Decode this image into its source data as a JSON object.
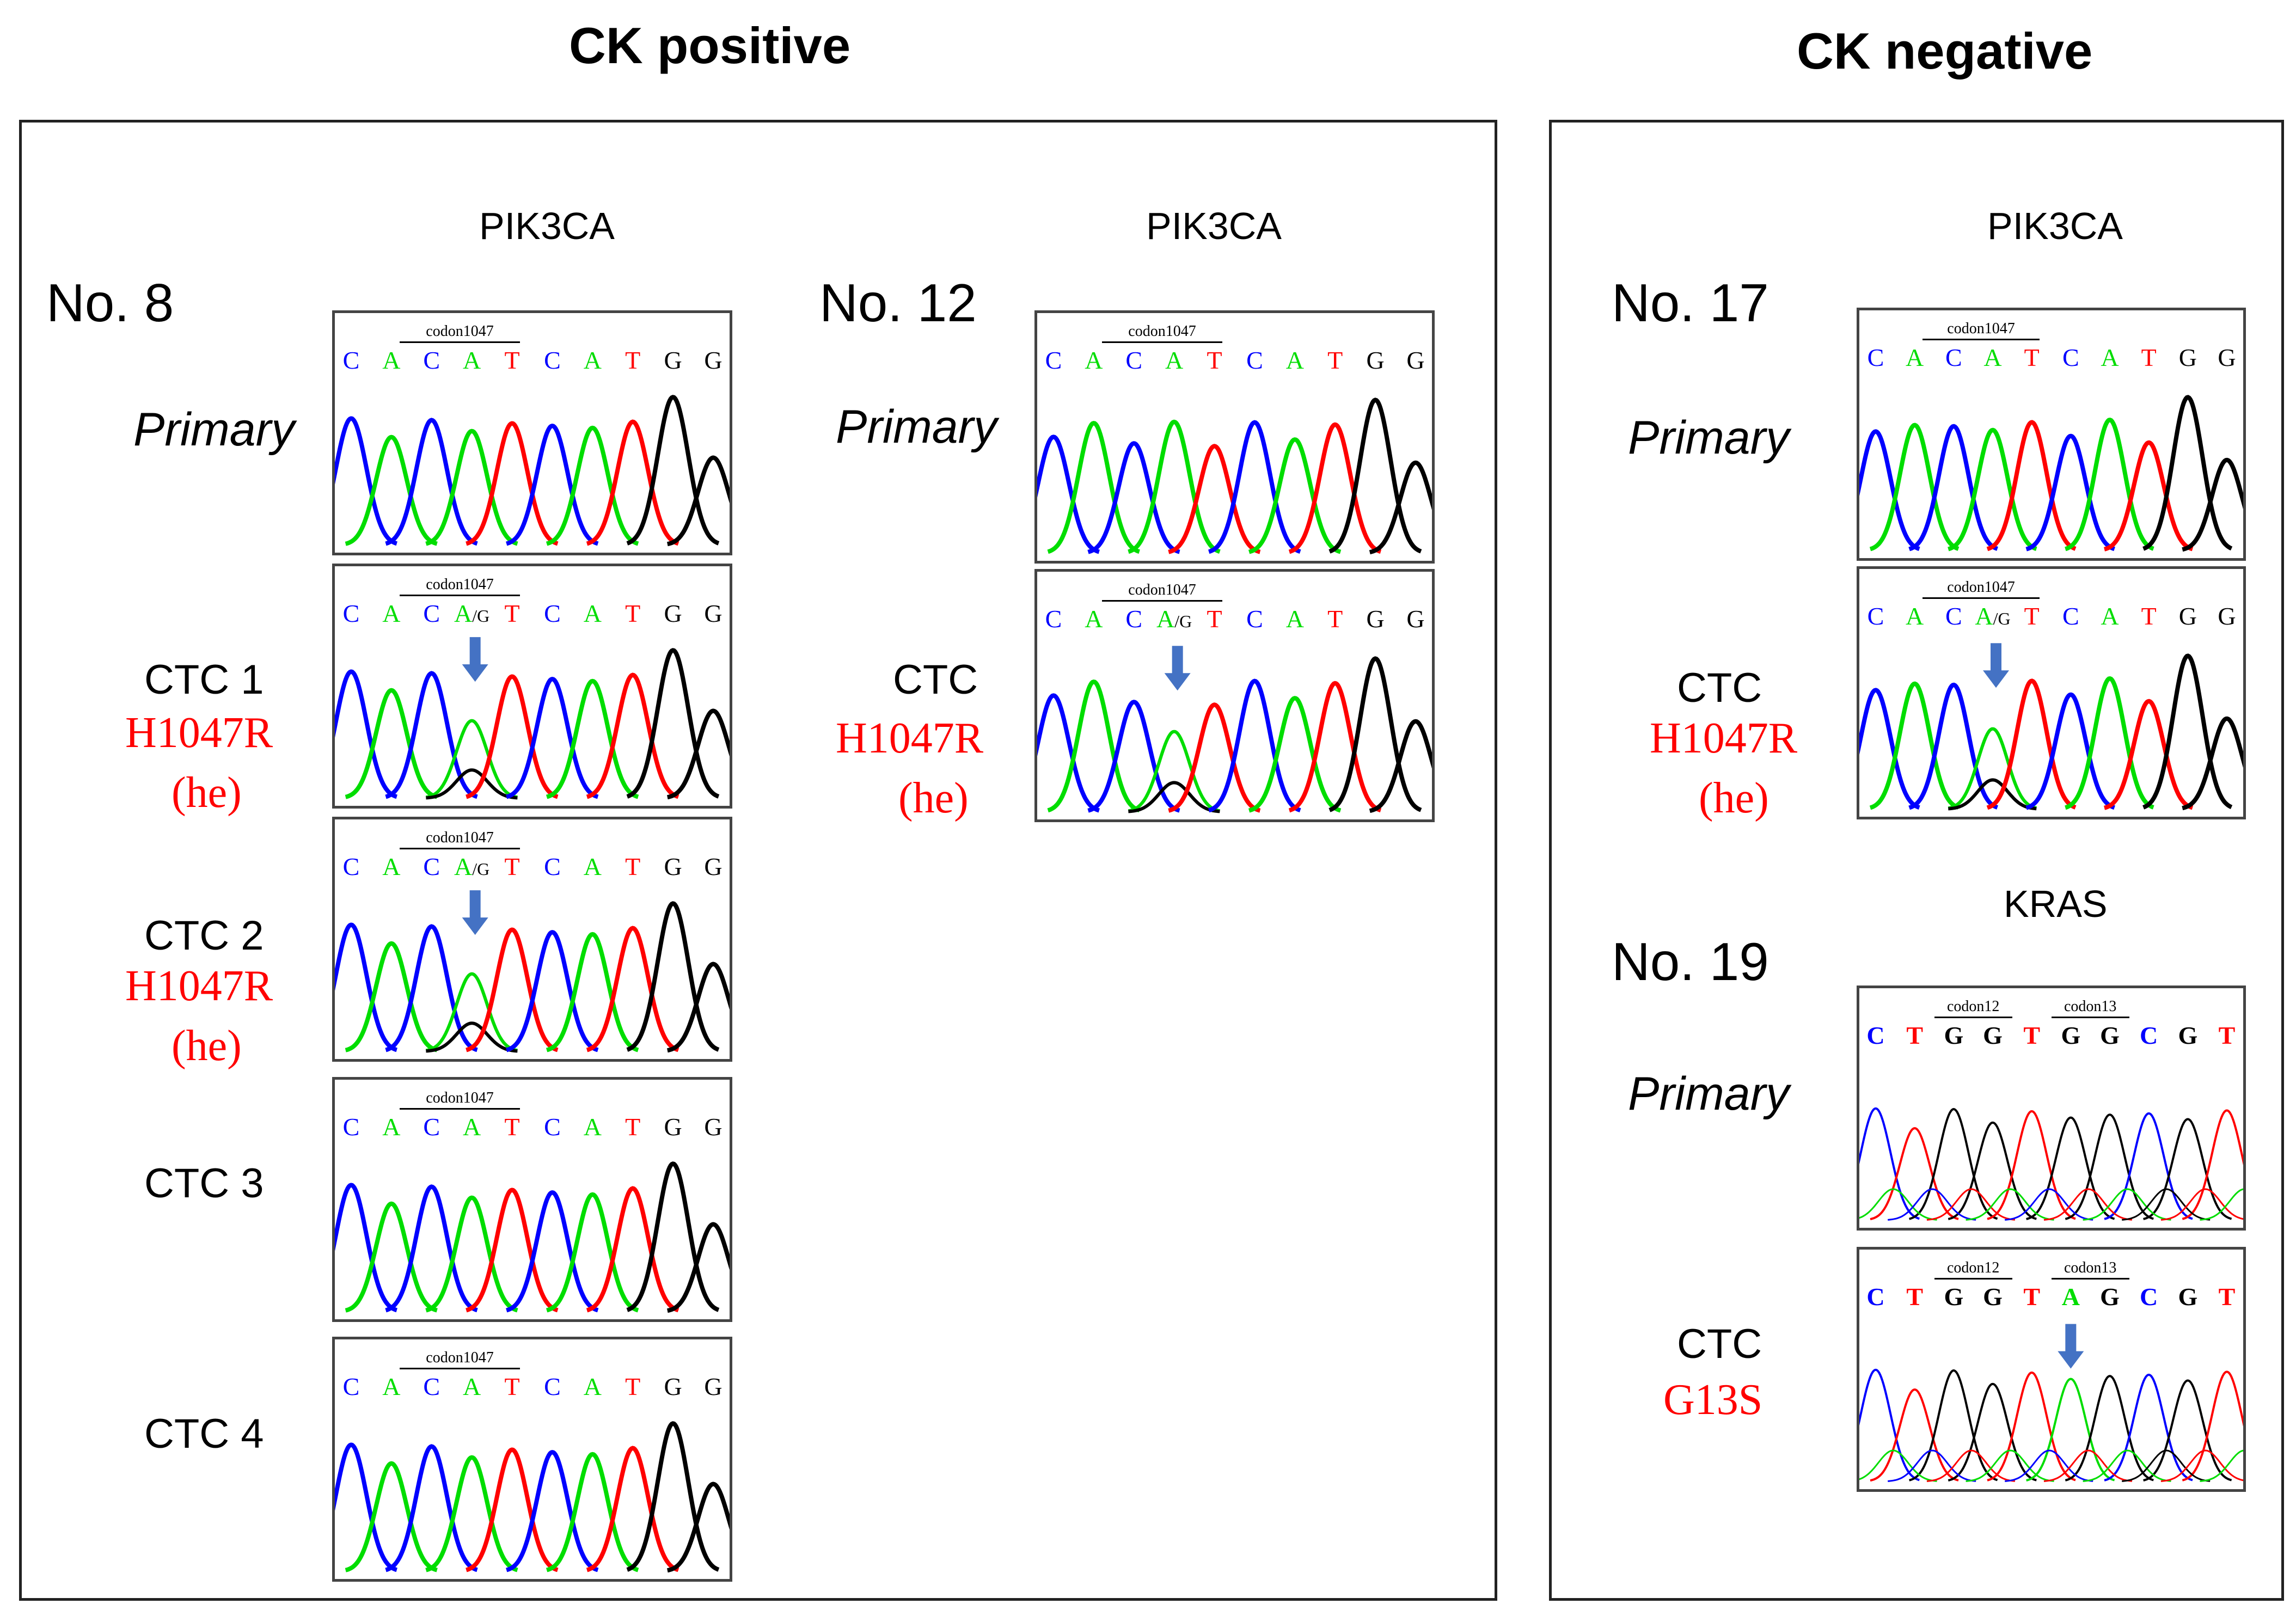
{
  "headers": {
    "ck_positive": "CK positive",
    "ck_negative": "CK negative"
  },
  "colors": {
    "A": "#00dd00",
    "C": "#0000ff",
    "G": "#000000",
    "T": "#ff0000",
    "mutation_text": "#ff0000",
    "arrow": "#4472c4"
  },
  "cases": [
    {
      "id": "no8",
      "label": "No. 8",
      "gene": "PIK3CA",
      "samples": [
        {
          "label": "Primary",
          "mutation": null,
          "zygosity": null,
          "codons": [
            "codon1047"
          ],
          "sequence": [
            "C",
            "A",
            "C",
            "A",
            "T",
            "C",
            "A",
            "T",
            "G",
            "G"
          ],
          "mixed_index": null
        },
        {
          "label": "CTC 1",
          "mutation": "H1047R",
          "zygosity": "(he)",
          "codons": [
            "codon1047"
          ],
          "sequence": [
            "C",
            "A",
            "C",
            "A/G",
            "T",
            "C",
            "A",
            "T",
            "G",
            "G"
          ],
          "mixed_index": 3
        },
        {
          "label": "CTC 2",
          "mutation": "H1047R",
          "zygosity": "(he)",
          "codons": [
            "codon1047"
          ],
          "sequence": [
            "C",
            "A",
            "C",
            "A/G",
            "T",
            "C",
            "A",
            "T",
            "G",
            "G"
          ],
          "mixed_index": 3
        },
        {
          "label": "CTC 3",
          "mutation": null,
          "zygosity": null,
          "codons": [
            "codon1047"
          ],
          "sequence": [
            "C",
            "A",
            "C",
            "A",
            "T",
            "C",
            "A",
            "T",
            "G",
            "G"
          ],
          "mixed_index": null
        },
        {
          "label": "CTC 4",
          "mutation": null,
          "zygosity": null,
          "codons": [
            "codon1047"
          ],
          "sequence": [
            "C",
            "A",
            "C",
            "A",
            "T",
            "C",
            "A",
            "T",
            "G",
            "G"
          ],
          "mixed_index": null
        }
      ]
    },
    {
      "id": "no12",
      "label": "No. 12",
      "gene": "PIK3CA",
      "samples": [
        {
          "label": "Primary",
          "mutation": null,
          "zygosity": null,
          "codons": [
            "codon1047"
          ],
          "sequence": [
            "C",
            "A",
            "C",
            "A",
            "T",
            "C",
            "A",
            "T",
            "G",
            "G"
          ],
          "mixed_index": null
        },
        {
          "label": "CTC",
          "mutation": "H1047R",
          "zygosity": "(he)",
          "codons": [
            "codon1047"
          ],
          "sequence": [
            "C",
            "A",
            "C",
            "A/G",
            "T",
            "C",
            "A",
            "T",
            "G",
            "G"
          ],
          "mixed_index": 3
        }
      ]
    },
    {
      "id": "no17",
      "label": "No. 17",
      "gene": "PIK3CA",
      "samples": [
        {
          "label": "Primary",
          "mutation": null,
          "zygosity": null,
          "codons": [
            "codon1047"
          ],
          "sequence": [
            "C",
            "A",
            "C",
            "A",
            "T",
            "C",
            "A",
            "T",
            "G",
            "G"
          ],
          "mixed_index": null
        },
        {
          "label": "CTC",
          "mutation": "H1047R",
          "zygosity": "(he)",
          "codons": [
            "codon1047"
          ],
          "sequence": [
            "C",
            "A",
            "C",
            "A/G",
            "T",
            "C",
            "A",
            "T",
            "G",
            "G"
          ],
          "mixed_index": 3
        }
      ]
    },
    {
      "id": "no19",
      "label": "No. 19",
      "gene": "KRAS",
      "samples": [
        {
          "label": "Primary",
          "mutation": null,
          "zygosity": null,
          "codons": [
            "codon12",
            "codon13"
          ],
          "sequence": [
            "C",
            "T",
            "G",
            "G",
            "T",
            "G",
            "G",
            "C",
            "G",
            "T"
          ],
          "mixed_index": null
        },
        {
          "label": "CTC",
          "mutation": "G13S",
          "zygosity": null,
          "codons": [
            "codon12",
            "codon13"
          ],
          "sequence": [
            "C",
            "T",
            "G",
            "G",
            "T",
            "A",
            "G",
            "C",
            "G",
            "T"
          ],
          "mixed_index": 5
        }
      ]
    }
  ]
}
